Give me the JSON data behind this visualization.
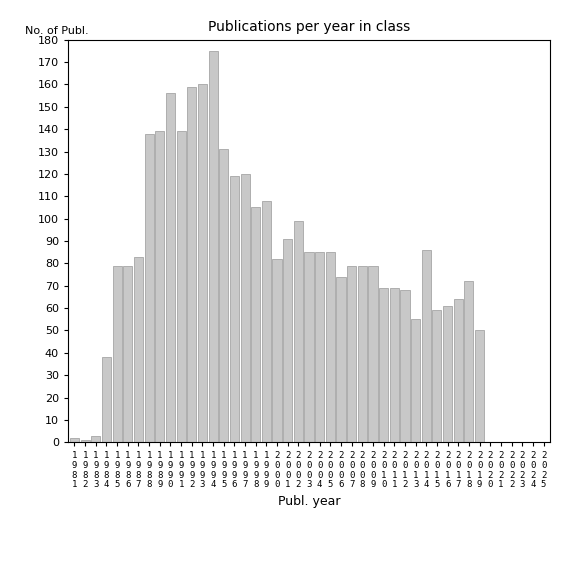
{
  "title": "Publications per year in class",
  "xlabel": "Publ. year",
  "ylabel": "No. of Publ.",
  "bar_color": "#c8c8c8",
  "bar_edge_color": "#999999",
  "ylim": [
    0,
    180
  ],
  "yticks": [
    0,
    10,
    20,
    30,
    40,
    50,
    60,
    70,
    80,
    90,
    100,
    110,
    120,
    130,
    140,
    150,
    160,
    170,
    180
  ],
  "years": [
    1981,
    1982,
    1983,
    1984,
    1985,
    1986,
    1987,
    1988,
    1989,
    1990,
    1991,
    1992,
    1993,
    1994,
    1995,
    1996,
    1997,
    1998,
    1999,
    2000,
    2001,
    2002,
    2003,
    2004,
    2005,
    2006,
    2007,
    2008,
    2009,
    2010,
    2011,
    2012,
    2013,
    2014,
    2015,
    2016,
    2017,
    2018,
    2019,
    2020,
    2021,
    2022,
    2023,
    2024,
    2025
  ],
  "values": [
    2,
    1,
    3,
    38,
    79,
    79,
    83,
    138,
    139,
    156,
    139,
    159,
    160,
    175,
    131,
    119,
    120,
    105,
    108,
    82,
    91,
    99,
    85,
    85,
    85,
    74,
    79,
    79,
    79,
    69,
    69,
    68,
    55,
    86,
    59,
    61,
    64,
    72,
    50,
    0,
    0,
    0,
    0,
    0,
    0
  ],
  "figsize": [
    5.67,
    5.67
  ],
  "dpi": 100
}
